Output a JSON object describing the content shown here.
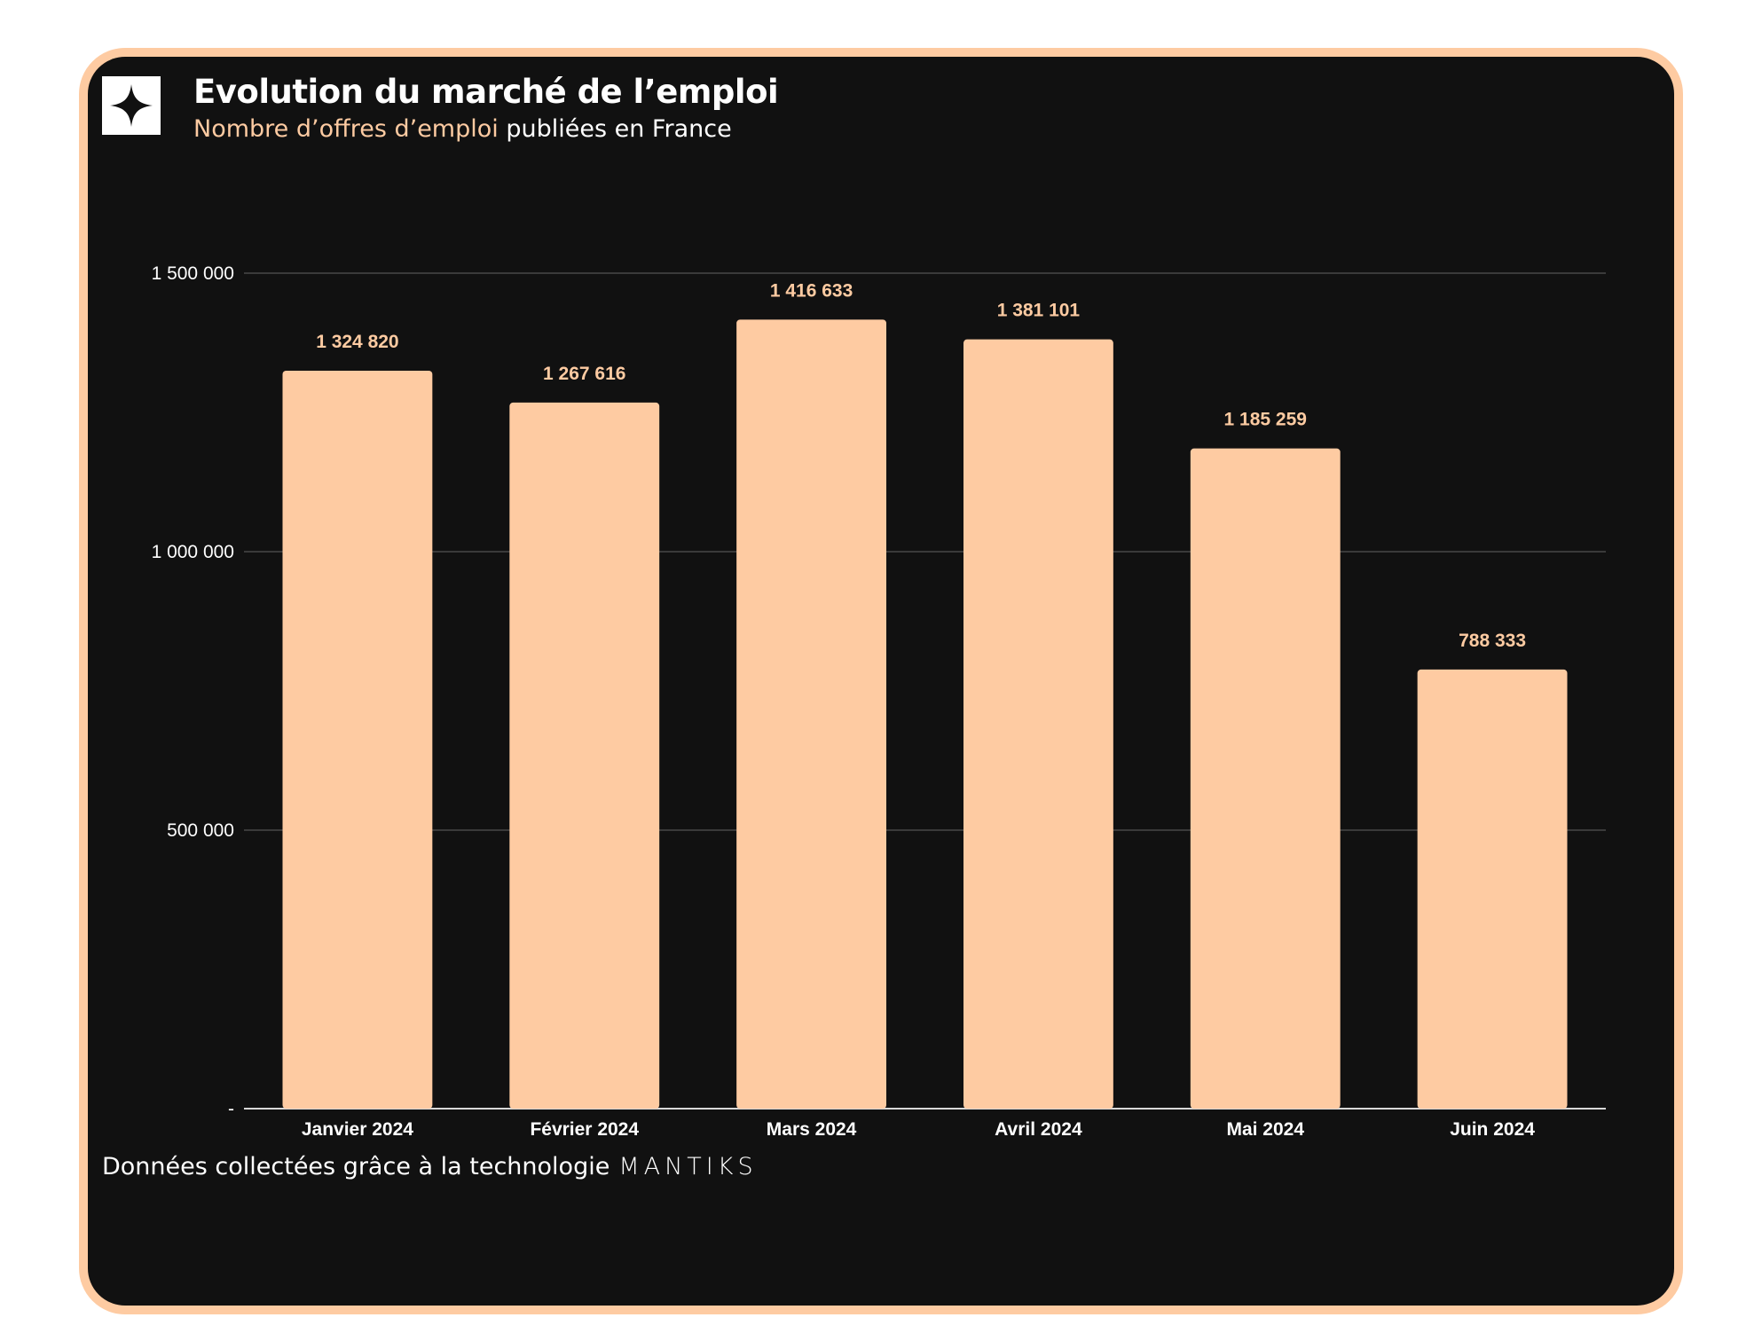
{
  "header": {
    "title": "Evolution du marché de l’emploi",
    "subtitle_highlight": "Nombre d’offres d’emploi",
    "subtitle_rest": " publiées en France",
    "logo_icon": "sparkle-icon"
  },
  "footer": {
    "text": "Données collectées grâce à la technologie",
    "brand": "MANTIKS"
  },
  "colors": {
    "background": "#111111",
    "accent": "#fecba2",
    "text": "#ffffff"
  },
  "chart_data": {
    "type": "bar",
    "categories": [
      "Janvier 2024",
      "Février 2024",
      "Mars 2024",
      "Avril 2024",
      "Mai 2024",
      "Juin 2024"
    ],
    "values": [
      1324820,
      1267616,
      1416633,
      1381101,
      1185259,
      788333
    ],
    "data_labels": [
      "1 324 820",
      "1 267 616",
      "1 416 633",
      "1 381 101",
      "1 185 259",
      "788 333"
    ],
    "ylim": [
      0,
      1500000
    ],
    "yticks": [
      0,
      500000,
      1000000,
      1500000
    ],
    "ytick_labels": [
      "-",
      "500 000",
      "1 000 000",
      "1 500 000"
    ],
    "grid": true,
    "bar_color": "#fecba2"
  }
}
